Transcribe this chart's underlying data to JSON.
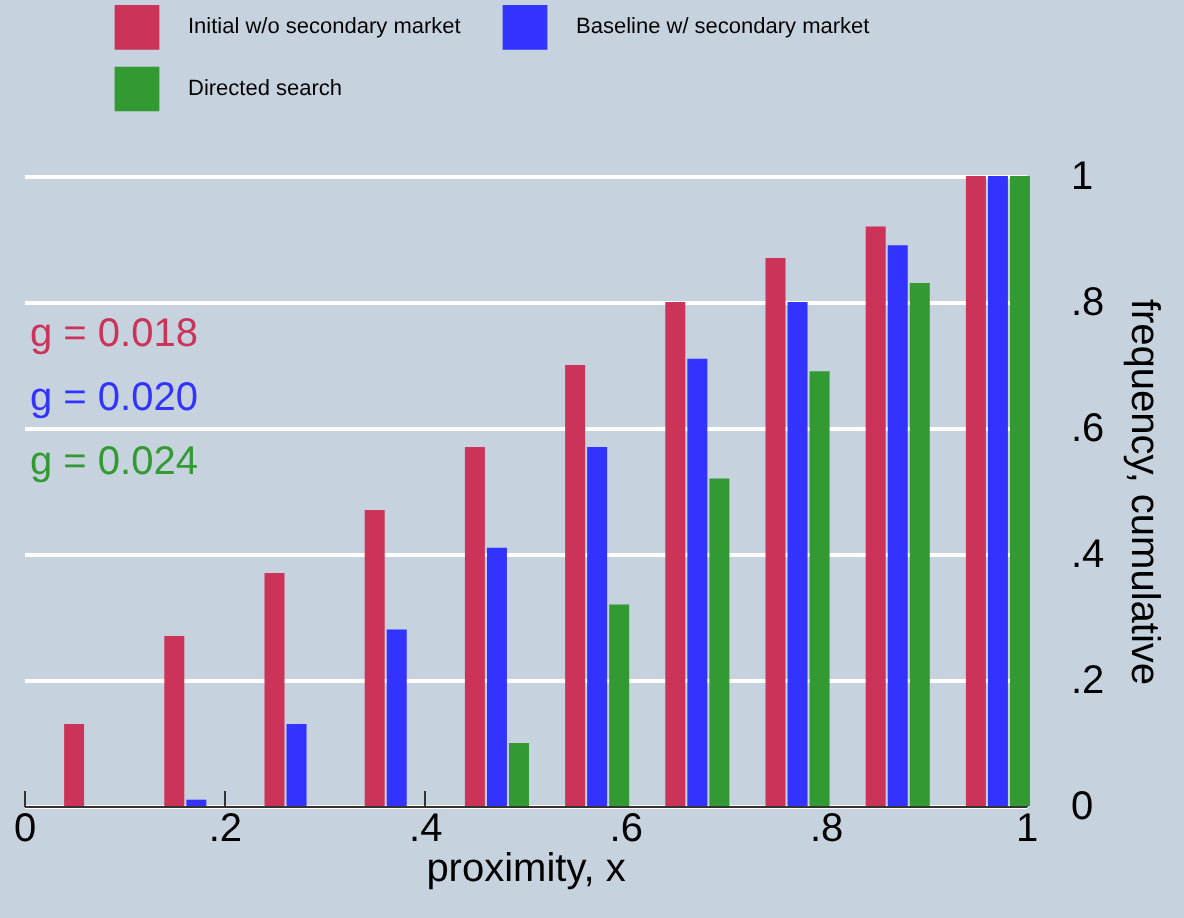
{
  "chart_data": {
    "type": "bar",
    "xlabel": "proximity, x",
    "ylabel": "frequency, cumulative",
    "series": [
      {
        "name": "Initial w/o secondary market",
        "color": "#cc3359",
        "x": [
          0.05,
          0.15,
          0.25,
          0.35,
          0.45,
          0.55,
          0.65,
          0.75,
          0.85,
          0.95
        ],
        "values": [
          0.13,
          0.27,
          0.37,
          0.47,
          0.57,
          0.7,
          0.8,
          0.87,
          0.92,
          1
        ]
      },
      {
        "name": "Baseline w/ secondary market",
        "color": "#3333ff",
        "x": [
          0.072,
          0.172,
          0.272,
          0.372,
          0.472,
          0.572,
          0.672,
          0.772,
          0.872,
          0.972
        ],
        "values": [
          0,
          0.01,
          0.13,
          0.28,
          0.41,
          0.57,
          0.71,
          0.8,
          0.89,
          1
        ]
      },
      {
        "name": "Directed search",
        "color": "#339933",
        "x": [
          0.094,
          0.194,
          0.294,
          0.394,
          0.494,
          0.594,
          0.694,
          0.794,
          0.894,
          0.994
        ],
        "values": [
          0,
          0,
          0,
          0,
          0.1,
          0.32,
          0.52,
          0.69,
          0.83,
          1
        ]
      }
    ],
    "annotations": [
      "g = 0.018",
      "g = 0.020",
      "g = 0.024"
    ],
    "xlim": [
      0,
      1
    ],
    "xticks": [
      0,
      {
        "value": 0.2,
        "label": ".2"
      },
      {
        "value": 0.4,
        "label": ".4"
      },
      {
        "value": 0.6,
        "label": ".6"
      },
      {
        "value": 0.8,
        "label": ".8"
      },
      1
    ],
    "ylim": [
      0,
      1
    ],
    "yticks": [
      0,
      {
        "value": 0.2,
        "label": ".2"
      },
      {
        "value": 0.4,
        "label": ".4"
      },
      {
        "value": 0.6,
        "label": ".6"
      },
      {
        "value": 0.8,
        "label": ".8"
      },
      1
    ],
    "grid": "y",
    "legend": "top"
  }
}
